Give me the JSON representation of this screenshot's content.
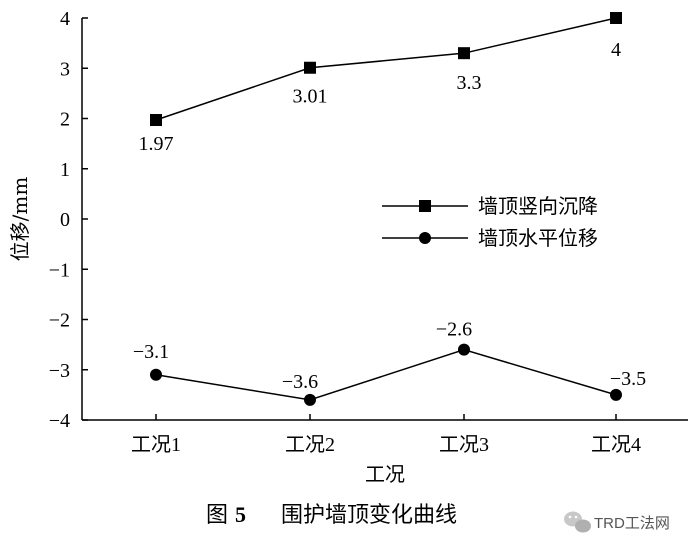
{
  "chart_data": {
    "type": "line",
    "categories": [
      "工况1",
      "工况2",
      "工况3",
      "工况4"
    ],
    "xlabel": "工况",
    "ylabel": "位移/mm",
    "ylim": [
      -4,
      4
    ],
    "yticks": [
      "4",
      "3",
      "2",
      "1",
      "0",
      "−1",
      "−2",
      "−3",
      "−4"
    ],
    "grid": false,
    "legend_position": "right-middle",
    "series": [
      {
        "name": "墙顶竖向沉降",
        "marker": "square",
        "values": [
          1.97,
          3.01,
          3.3,
          4
        ],
        "labels": [
          "1.97",
          "3.01",
          "3.3",
          "4"
        ]
      },
      {
        "name": "墙顶水平位移",
        "marker": "circle",
        "values": [
          -3.1,
          -3.6,
          -2.6,
          -3.5
        ],
        "labels": [
          "−3.1",
          "−3.6",
          "−2.6",
          "−3.5"
        ]
      }
    ]
  },
  "caption": {
    "prefix": "图",
    "number": "5",
    "text": "围护墙顶变化曲线"
  },
  "watermark": {
    "text": "TRD工法网"
  }
}
